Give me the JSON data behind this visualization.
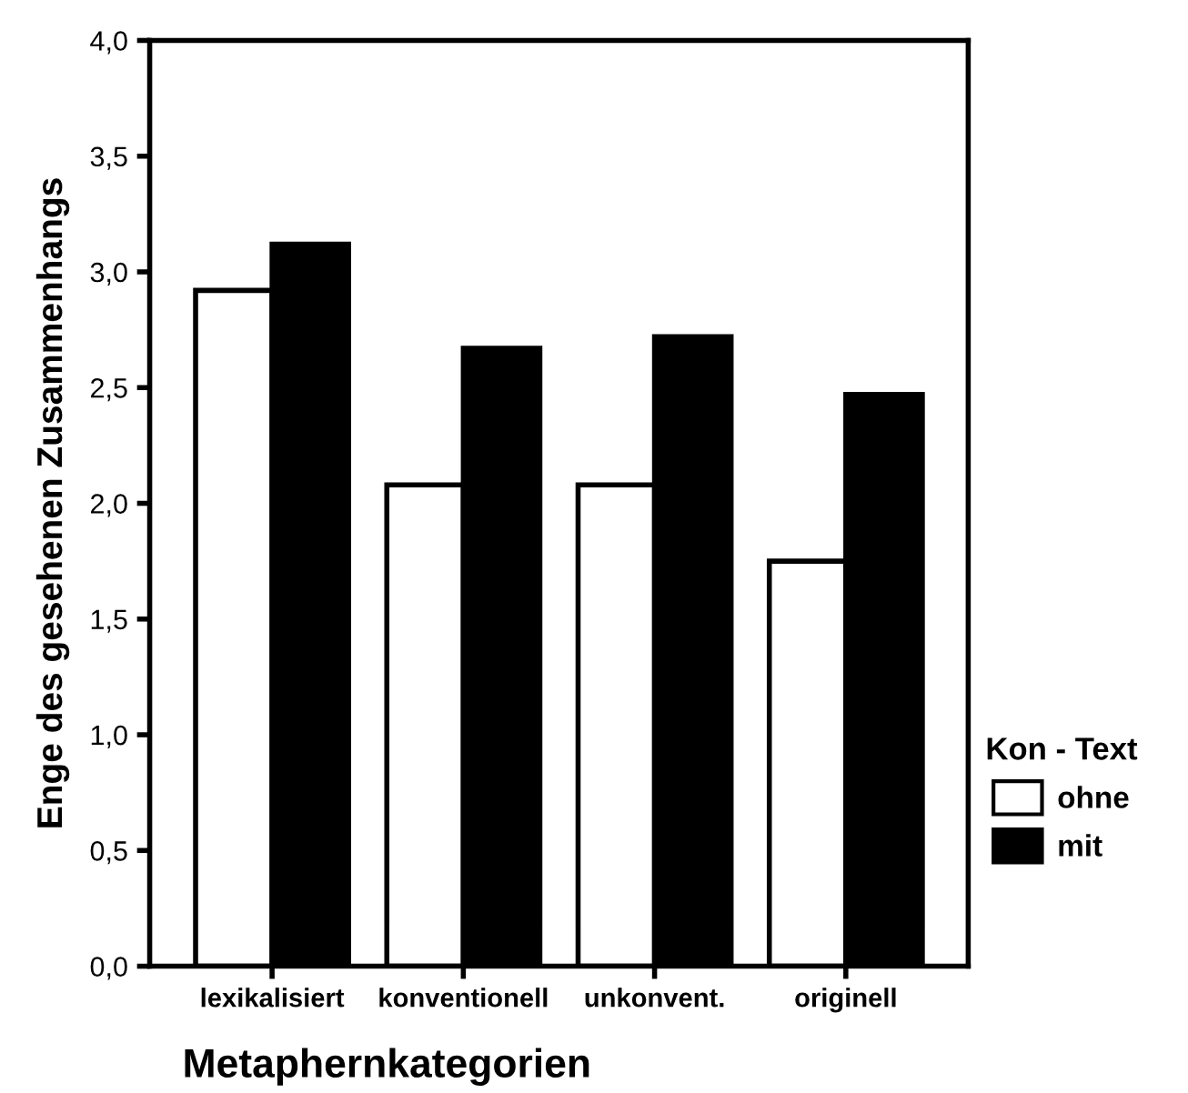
{
  "chart_data": {
    "type": "bar",
    "xlabel": "Metaphernkategorien",
    "ylabel": "Enge des gesehenen Zusammenhangs",
    "legend_title": "Kon - Text",
    "categories": [
      "lexikalisiert",
      "konventionell",
      "unkonvent.",
      "originell"
    ],
    "series": [
      {
        "name": "ohne",
        "color": "#ffffff",
        "values": [
          2.92,
          2.08,
          2.08,
          1.75
        ]
      },
      {
        "name": "mit",
        "color": "#000000",
        "values": [
          3.12,
          2.67,
          2.72,
          2.47
        ]
      }
    ],
    "ylim": [
      0,
      4
    ],
    "yticks": [
      {
        "value": 0,
        "label": "0,0"
      },
      {
        "value": 0.5,
        "label": "0,5"
      },
      {
        "value": 1,
        "label": "1,0"
      },
      {
        "value": 1.5,
        "label": "1,5"
      },
      {
        "value": 2,
        "label": "2,0"
      },
      {
        "value": 2.5,
        "label": "2,5"
      },
      {
        "value": 3,
        "label": "3,0"
      },
      {
        "value": 3.5,
        "label": "3,5"
      },
      {
        "value": 4,
        "label": "4,0"
      }
    ],
    "grid": false,
    "legend": "right"
  }
}
